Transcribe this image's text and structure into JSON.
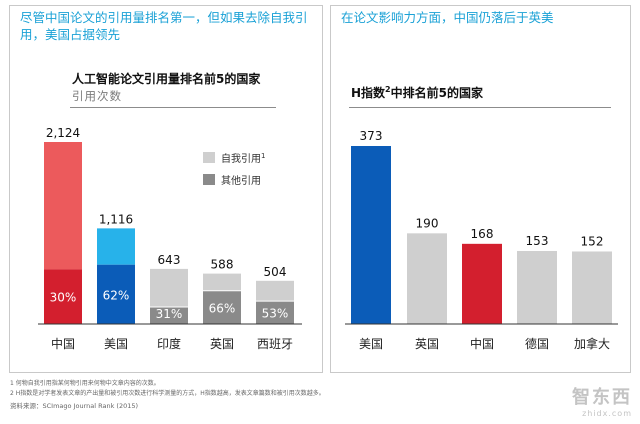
{
  "left_panel": {
    "headline": "尽管中国论文的引用量排名第一，但如果去除自我引用，美国占据领先"
  },
  "right_panel": {
    "headline": "在论文影响力方面，中国仍落后于英美"
  },
  "chart_data": [
    {
      "type": "bar",
      "stacked": true,
      "title": "人工智能论文引用量排名前5的国家",
      "subtitle": "引用次数",
      "categories": [
        "中国",
        "美国",
        "印度",
        "英国",
        "西班牙"
      ],
      "totals": [
        2124,
        1116,
        643,
        588,
        504
      ],
      "total_labels": [
        "2,124",
        "1,116",
        "643",
        "588",
        "504"
      ],
      "series": [
        {
          "name": "其他引用",
          "values": [
            637,
            692,
            199,
            388,
            267
          ],
          "share_labels": [
            "30%",
            "62%",
            "31%",
            "66%",
            "53%"
          ]
        },
        {
          "name": "自我引用",
          "values": [
            1487,
            424,
            444,
            200,
            237
          ]
        }
      ],
      "legend": {
        "self_label": "自我引用",
        "self_sup": "1",
        "other_label": "其他引用"
      },
      "legend_position": "right",
      "colors": {
        "中国": {
          "self": "#ec5a5c",
          "other": "#d31f2e"
        },
        "美国": {
          "self": "#27b2ea",
          "other": "#0b5cb8"
        },
        "印度": {
          "self": "#cfcfcf",
          "other": "#8a8a8a"
        },
        "英国": {
          "self": "#cfcfcf",
          "other": "#8a8a8a"
        },
        "西班牙": {
          "self": "#cfcfcf",
          "other": "#8a8a8a"
        }
      },
      "ylim": [
        0,
        2124
      ]
    },
    {
      "type": "bar",
      "title_main": "H指数",
      "title_sup": "2",
      "title_rest": "中排名前5的国家",
      "categories": [
        "美国",
        "英国",
        "中国",
        "德国",
        "加拿大"
      ],
      "values": [
        373,
        190,
        168,
        153,
        152
      ],
      "colors": [
        "#0b5cb8",
        "#cfcfcf",
        "#d31f2e",
        "#cfcfcf",
        "#cfcfcf"
      ],
      "ylim": [
        0,
        373
      ]
    }
  ],
  "footnotes": {
    "note1": "1 何物自我引用指某何物引用来何物中文章内容的次数。",
    "note2": "2 H指数是对学者发表文章的产出量和被引用次数进行科学测量的方式，H指数越高，发表文章篇数和被引用次数越多。",
    "source": "资料来源：SCImago Journal Rank (2015)"
  },
  "watermark": {
    "main": "智东西",
    "sub": "zhidx.com"
  }
}
